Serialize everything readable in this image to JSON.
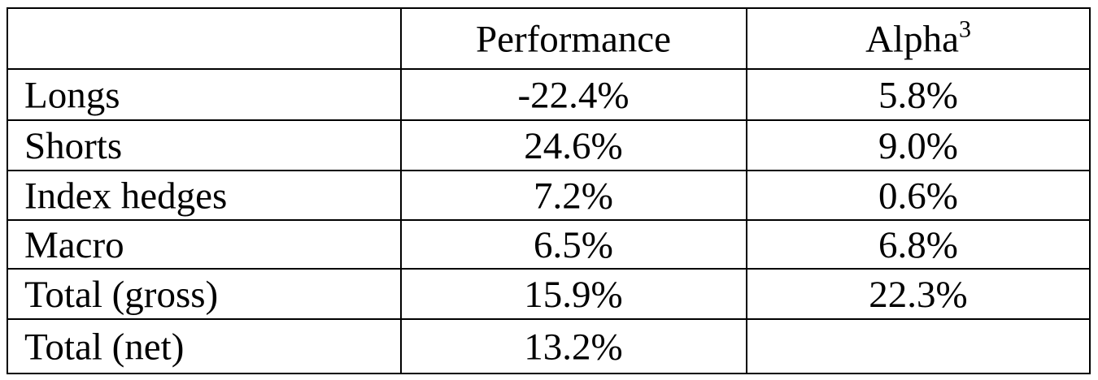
{
  "table": {
    "header": [
      "Performance",
      {
        "text": "Alpha",
        "superscript": "3"
      }
    ],
    "rows": [
      [
        "Longs",
        "-22.4%",
        "5.8%"
      ],
      [
        "Shorts",
        "24.6%",
        "9.0%"
      ],
      [
        "Index hedges",
        "7.2%",
        "0.6%"
      ],
      [
        "Macro",
        "6.5%",
        "6.8%"
      ],
      [
        "Total (gross)",
        "15.9%",
        "22.3%"
      ],
      [
        "Total (net)",
        "13.2%"
      ]
    ]
  }
}
